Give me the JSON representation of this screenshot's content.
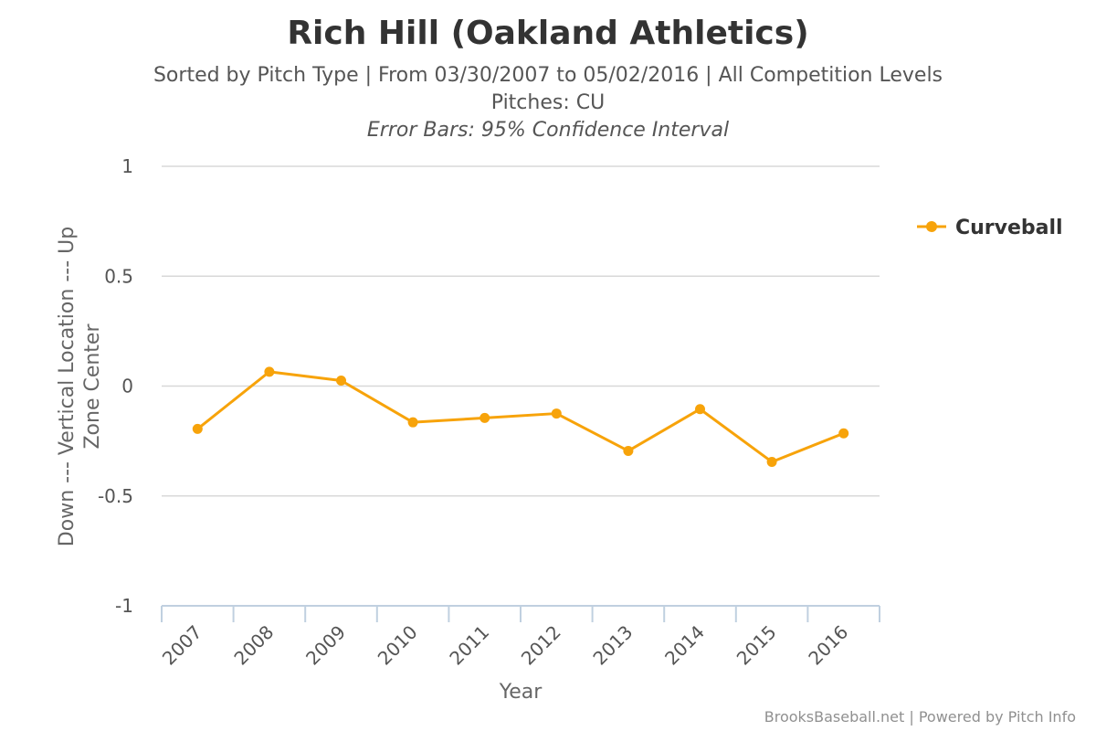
{
  "chart_data": {
    "type": "line",
    "title": "Rich Hill (Oakland Athletics)",
    "subtitle_line1": "Sorted by Pitch Type | From 03/30/2007 to 05/02/2016 | All Competition Levels",
    "subtitle_line2": "Pitches: CU",
    "subtitle_line3": "Error Bars: 95% Confidence Interval",
    "xlabel": "Year",
    "ylabel_line1": "Down --- Vertical Location --- Up",
    "ylabel_line2": "Zone Center",
    "categories": [
      "2007",
      "2008",
      "2009",
      "2010",
      "2011",
      "2012",
      "2013",
      "2014",
      "2015",
      "2016"
    ],
    "series": [
      {
        "name": "Curveball",
        "color": "#f7a30a",
        "values": [
          -0.195,
          0.065,
          0.025,
          -0.165,
          -0.145,
          -0.125,
          -0.295,
          -0.105,
          -0.345,
          -0.215
        ]
      }
    ],
    "ylim": [
      -1,
      1
    ],
    "yticks": [
      "1",
      "0.5",
      "0",
      "-0.5",
      "-1"
    ],
    "ytick_values": [
      1,
      0.5,
      0,
      -0.5,
      -1
    ],
    "grid": true,
    "legend_position": "right",
    "credits": "BrooksBaseball.net | Powered by Pitch Info"
  }
}
